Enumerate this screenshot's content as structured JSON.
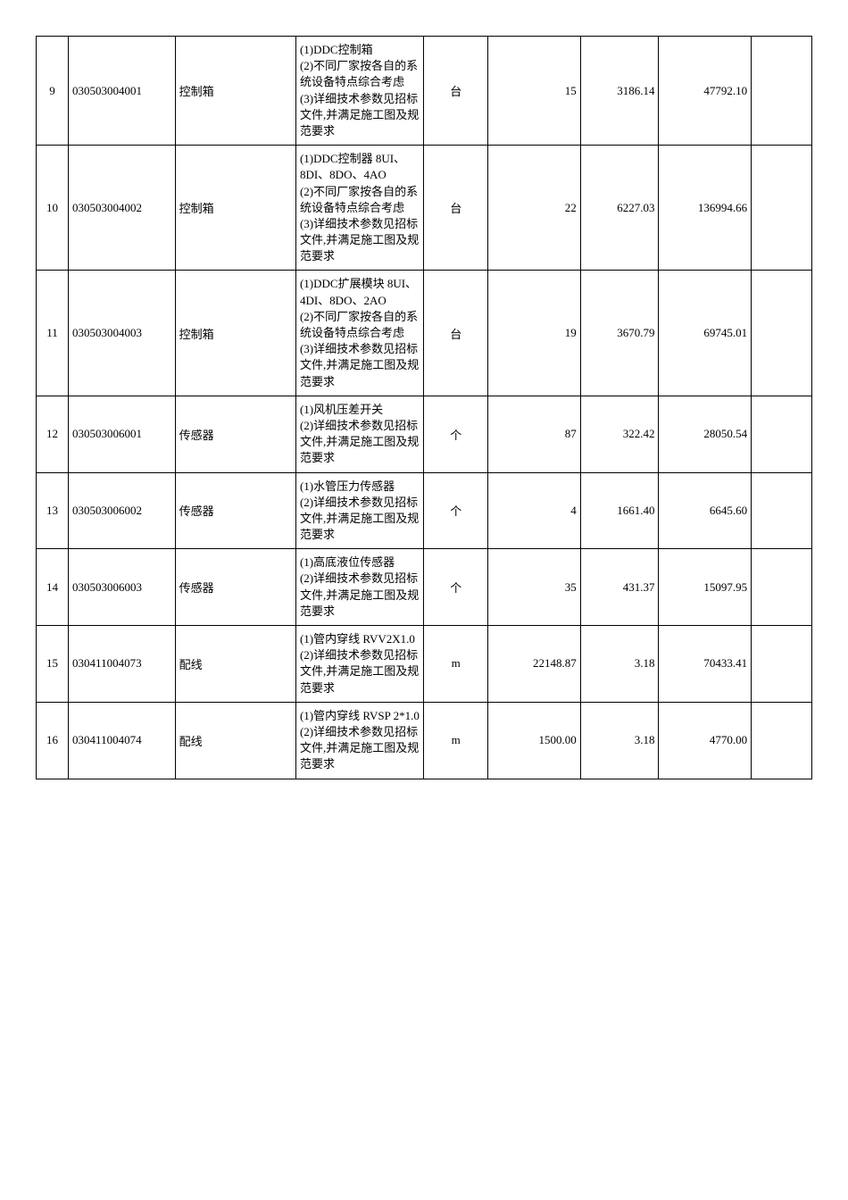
{
  "table": {
    "rows": [
      {
        "idx": "9",
        "code": "030503004001",
        "name": "控制箱",
        "desc": "(1)DDC控制箱\n(2)不同厂家按各自的系统设备特点综合考虑\n(3)详细技术参数见招标文件,并满足施工图及规范要求",
        "unit": "台",
        "qty": "15",
        "price": "3186.14",
        "total": "47792.10"
      },
      {
        "idx": "10",
        "code": "030503004002",
        "name": "控制箱",
        "desc": "(1)DDC控制器 8UI、8DI、8DO、4AO\n(2)不同厂家按各自的系统设备特点综合考虑\n(3)详细技术参数见招标文件,并满足施工图及规范要求",
        "unit": "台",
        "qty": "22",
        "price": "6227.03",
        "total": "136994.66"
      },
      {
        "idx": "11",
        "code": "030503004003",
        "name": "控制箱",
        "desc": "(1)DDC扩展模块 8UI、4DI、8DO、2AO\n(2)不同厂家按各自的系统设备特点综合考虑\n(3)详细技术参数见招标文件,并满足施工图及规范要求",
        "unit": "台",
        "qty": "19",
        "price": "3670.79",
        "total": "69745.01"
      },
      {
        "idx": "12",
        "code": "030503006001",
        "name": "传感器",
        "desc": "(1)风机压差开关\n(2)详细技术参数见招标文件,并满足施工图及规范要求",
        "unit": "个",
        "qty": "87",
        "price": "322.42",
        "total": "28050.54"
      },
      {
        "idx": "13",
        "code": "030503006002",
        "name": "传感器",
        "desc": "(1)水管压力传感器\n(2)详细技术参数见招标文件,并满足施工图及规范要求",
        "unit": "个",
        "qty": "4",
        "price": "1661.40",
        "total": "6645.60"
      },
      {
        "idx": "14",
        "code": "030503006003",
        "name": "传感器",
        "desc": "(1)高底液位传感器\n(2)详细技术参数见招标文件,并满足施工图及规范要求",
        "unit": "个",
        "qty": "35",
        "price": "431.37",
        "total": "15097.95"
      },
      {
        "idx": "15",
        "code": "030411004073",
        "name": "配线",
        "desc": "(1)管内穿线 RVV2X1.0\n(2)详细技术参数见招标文件,并满足施工图及规范要求",
        "unit": "m",
        "qty": "22148.87",
        "price": "3.18",
        "total": "70433.41"
      },
      {
        "idx": "16",
        "code": "030411004074",
        "name": "配线",
        "desc": "(1)管内穿线 RVSP 2*1.0\n(2)详细技术参数见招标文件,并满足施工图及规范要求",
        "unit": "m",
        "qty": "1500.00",
        "price": "3.18",
        "total": "4770.00"
      }
    ]
  }
}
